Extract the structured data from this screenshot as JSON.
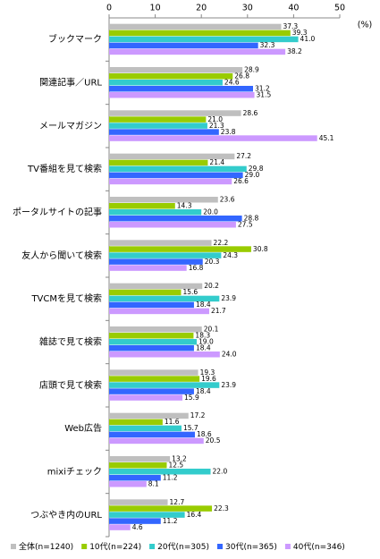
{
  "chart_data": {
    "type": "hbar",
    "unit": "(%)",
    "categories": [
      "ブックマーク",
      "関連記事／URL",
      "メールマガジン",
      "TV番組を見て検索",
      "ポータルサイトの記事",
      "友人から聞いて検索",
      "TVCMを見て検索",
      "雑誌で見て検索",
      "店頭で見て検索",
      "Web広告",
      "mixiチェック",
      "つぶやき内のURL"
    ],
    "series": [
      {
        "name": "全体(n=1240)",
        "color": "#bfbfbf",
        "values": [
          37.3,
          28.9,
          28.6,
          27.2,
          23.6,
          22.2,
          20.2,
          20.1,
          19.3,
          17.2,
          13.2,
          12.7
        ],
        "value_labels": [
          "37.3",
          "28.9",
          "28.6",
          "27.2",
          "23.6",
          "22.2",
          "20.2",
          "20.1",
          "19.3",
          "17.2",
          "13.2",
          "12.7"
        ]
      },
      {
        "name": "10代(n=224)",
        "color": "#99cc00",
        "values": [
          39.3,
          26.8,
          21.0,
          21.4,
          14.3,
          30.8,
          15.6,
          18.3,
          19.6,
          11.6,
          12.5,
          22.3
        ],
        "value_labels": [
          "39.3",
          "26.8",
          "21.0",
          "21.4",
          "14.3",
          "30.8",
          "15.6",
          "18.3",
          "19.6",
          "11.6",
          "12.5",
          "22.3"
        ]
      },
      {
        "name": "20代(n=305)",
        "color": "#33cccc",
        "values": [
          41.0,
          24.6,
          21.3,
          29.8,
          20.0,
          24.3,
          23.9,
          19.0,
          23.9,
          15.7,
          22.0,
          16.4
        ],
        "value_labels": [
          "41.0",
          "24.6",
          "21.3",
          "29.8",
          "20.0",
          "24.3",
          "23.9",
          "19.0",
          "23.9",
          "15.7",
          "22.0",
          "16.4"
        ]
      },
      {
        "name": "30代(n=365)",
        "color": "#3366ff",
        "values": [
          32.3,
          31.2,
          23.8,
          29.0,
          28.8,
          20.3,
          18.4,
          18.4,
          18.4,
          18.6,
          11.2,
          11.2
        ],
        "value_labels": [
          "32.3",
          "31.2",
          "23.8",
          "29.0",
          "28.8",
          "20.3",
          "18.4",
          "18.4",
          "18.4",
          "18.6",
          "11.2",
          "11.2"
        ]
      },
      {
        "name": "40代(n=346)",
        "color": "#cc99ff",
        "values": [
          38.2,
          31.5,
          45.1,
          26.6,
          27.5,
          16.8,
          21.7,
          24.0,
          15.9,
          20.5,
          8.1,
          4.6
        ],
        "value_labels": [
          "38.2",
          "31.5",
          "45.1",
          "26.6",
          "27.5",
          "16.8",
          "21.7",
          "24.0",
          "15.9",
          "20.5",
          "8.1",
          "4.6"
        ]
      }
    ],
    "xlim": [
      0,
      50
    ],
    "xticks": [
      0,
      10,
      20,
      30,
      40,
      50
    ]
  }
}
